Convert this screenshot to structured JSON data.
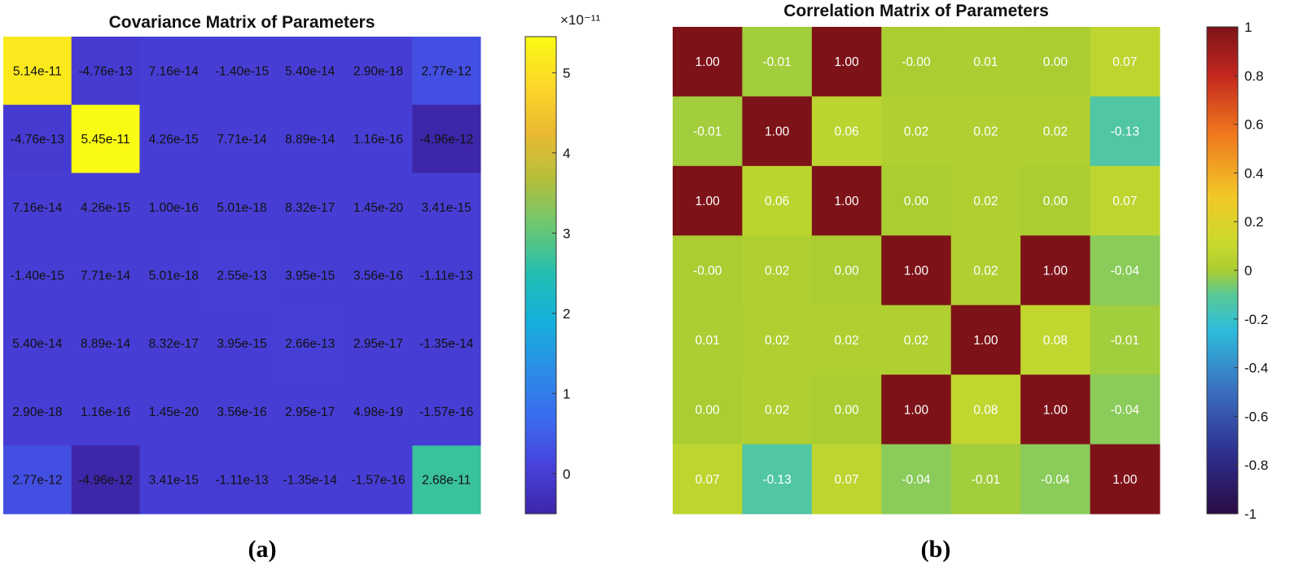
{
  "chart_data": [
    {
      "type": "heatmap",
      "title": "Covariance Matrix of Parameters",
      "panel_label": "(a)",
      "matrix": [
        [
          5.14e-11,
          -4.76e-13,
          7.16e-14,
          -1.4e-15,
          5.4e-14,
          2.9e-18,
          2.77e-12
        ],
        [
          -4.76e-13,
          5.45e-11,
          4.26e-15,
          7.71e-14,
          8.89e-14,
          1.16e-16,
          -4.96e-12
        ],
        [
          7.16e-14,
          4.26e-15,
          1e-16,
          5.01e-18,
          8.32e-17,
          1.45e-20,
          3.41e-15
        ],
        [
          -1.4e-15,
          7.71e-14,
          5.01e-18,
          2.55e-13,
          3.95e-15,
          3.56e-16,
          -1.11e-13
        ],
        [
          5.4e-14,
          8.89e-14,
          8.32e-17,
          3.95e-15,
          2.66e-13,
          2.95e-17,
          -1.35e-14
        ],
        [
          2.9e-18,
          1.16e-16,
          1.45e-20,
          3.56e-16,
          2.95e-17,
          4.98e-19,
          -1.57e-16
        ],
        [
          2.77e-12,
          -4.96e-12,
          3.41e-15,
          -1.11e-13,
          -1.35e-14,
          -1.57e-16,
          2.68e-11
        ]
      ],
      "labels": [
        [
          "5.14e-11",
          "-4.76e-13",
          "7.16e-14",
          "-1.40e-15",
          "5.40e-14",
          "2.90e-18",
          "2.77e-12"
        ],
        [
          "-4.76e-13",
          "5.45e-11",
          "4.26e-15",
          "7.71e-14",
          "8.89e-14",
          "1.16e-16",
          "-4.96e-12"
        ],
        [
          "7.16e-14",
          "4.26e-15",
          "1.00e-16",
          "5.01e-18",
          "8.32e-17",
          "1.45e-20",
          "3.41e-15"
        ],
        [
          "-1.40e-15",
          "7.71e-14",
          "5.01e-18",
          "2.55e-13",
          "3.95e-15",
          "3.56e-16",
          "-1.11e-13"
        ],
        [
          "5.40e-14",
          "8.89e-14",
          "8.32e-17",
          "3.95e-15",
          "2.66e-13",
          "2.95e-17",
          "-1.35e-14"
        ],
        [
          "2.90e-18",
          "1.16e-16",
          "1.45e-20",
          "3.56e-16",
          "2.95e-17",
          "4.98e-19",
          "-1.57e-16"
        ],
        [
          "2.77e-12",
          "-4.96e-12",
          "3.41e-15",
          "-1.11e-13",
          "-1.35e-14",
          "-1.57e-16",
          "2.68e-11"
        ]
      ],
      "colormap": "parula",
      "color_scale": 1e-11,
      "clim": [
        -0.5,
        5.45
      ],
      "colorbar": {
        "exponent_label": "×10⁻¹¹",
        "ticks": [
          0,
          1,
          2,
          3,
          4,
          5
        ],
        "tick_labels": [
          "0",
          "1",
          "2",
          "3",
          "4",
          "5"
        ]
      }
    },
    {
      "type": "heatmap",
      "title": "Correlation Matrix of Parameters",
      "panel_label": "(b)",
      "matrix": [
        [
          1.0,
          -0.01,
          1.0,
          -0.0,
          0.01,
          0.0,
          0.07
        ],
        [
          -0.01,
          1.0,
          0.06,
          0.02,
          0.02,
          0.02,
          -0.13
        ],
        [
          1.0,
          0.06,
          1.0,
          0.0,
          0.02,
          0.0,
          0.07
        ],
        [
          -0.0,
          0.02,
          0.0,
          1.0,
          0.02,
          1.0,
          -0.04
        ],
        [
          0.01,
          0.02,
          0.02,
          0.02,
          1.0,
          0.08,
          -0.01
        ],
        [
          0.0,
          0.02,
          0.0,
          1.0,
          0.08,
          1.0,
          -0.04
        ],
        [
          0.07,
          -0.13,
          0.07,
          -0.04,
          -0.01,
          -0.04,
          1.0
        ]
      ],
      "labels": [
        [
          "1.00",
          "-0.01",
          "1.00",
          "-0.00",
          "0.01",
          "0.00",
          "0.07"
        ],
        [
          "-0.01",
          "1.00",
          "0.06",
          "0.02",
          "0.02",
          "0.02",
          "-0.13"
        ],
        [
          "1.00",
          "0.06",
          "1.00",
          "0.00",
          "0.02",
          "0.00",
          "0.07"
        ],
        [
          "-0.00",
          "0.02",
          "0.00",
          "1.00",
          "0.02",
          "1.00",
          "-0.04"
        ],
        [
          "0.01",
          "0.02",
          "0.02",
          "0.02",
          "1.00",
          "0.08",
          "-0.01"
        ],
        [
          "0.00",
          "0.02",
          "0.00",
          "1.00",
          "0.08",
          "1.00",
          "-0.04"
        ],
        [
          "0.07",
          "-0.13",
          "0.07",
          "-0.04",
          "-0.01",
          "-0.04",
          "1.00"
        ]
      ],
      "colormap": "jet",
      "clim": [
        -1,
        1
      ],
      "colorbar": {
        "ticks": [
          -1,
          -0.8,
          -0.6,
          -0.4,
          -0.2,
          0,
          0.2,
          0.4,
          0.6,
          0.8,
          1
        ],
        "tick_labels": [
          "-1",
          "-0.8",
          "-0.6",
          "-0.4",
          "-0.2",
          "0",
          "0.2",
          "0.4",
          "0.6",
          "0.8",
          "1"
        ]
      }
    }
  ],
  "colors": {
    "text_on_parula": "#111111",
    "text_on_jet": "#ffffff",
    "background": "#ffffff"
  }
}
